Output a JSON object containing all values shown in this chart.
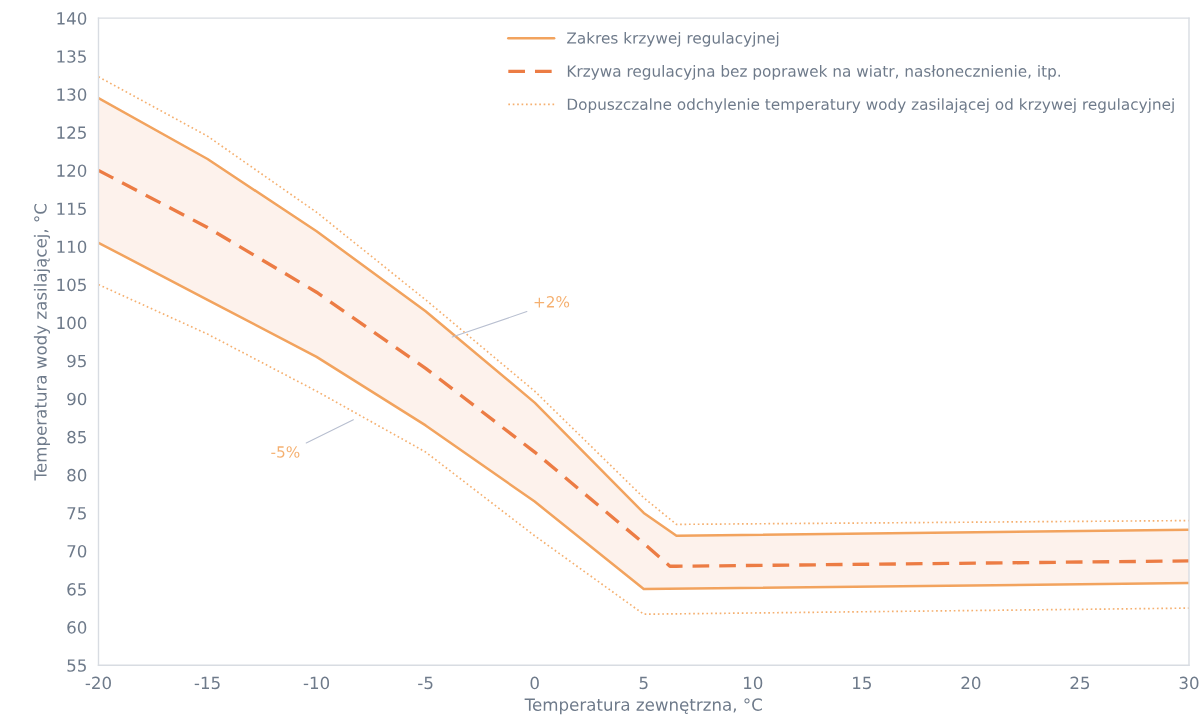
{
  "chart_data": {
    "type": "line",
    "xlabel": "Temperatura zewnętrzna, °C",
    "ylabel": "Temperatura wody zasilającej, °C",
    "xlim": [
      -20,
      30
    ],
    "ylim": [
      55,
      140
    ],
    "xticks": [
      -20,
      -15,
      -10,
      -5,
      0,
      5,
      10,
      15,
      20,
      25,
      30
    ],
    "yticks": [
      55,
      60,
      65,
      70,
      75,
      80,
      85,
      90,
      95,
      100,
      105,
      110,
      115,
      120,
      125,
      130,
      135,
      140
    ],
    "grid": false,
    "legend": "top right",
    "series": [
      {
        "name": "Zakres krzywej regulacyjnej",
        "color": "#f2a35e",
        "line_style": "solid",
        "x": [
          -20,
          -15,
          -10,
          -5,
          0,
          5,
          6.5,
          30
        ],
        "values": [
          129.5,
          121.5,
          112,
          101.5,
          89.5,
          75,
          72,
          72.8
        ]
      },
      {
        "color": "#f2a35e",
        "line_style": "solid",
        "x": [
          -20,
          -15,
          -10,
          -5,
          0,
          5,
          30
        ],
        "values": [
          110.5,
          103,
          95.5,
          86.5,
          76.5,
          65,
          65.8
        ]
      },
      {
        "name": "Krzywa regulacyjna bez poprawek na wiatr, nasłonecznienie, itp.",
        "color": "#ec7c44",
        "line_style": "dashed",
        "x": [
          -20,
          -15,
          -10,
          -5,
          0,
          5,
          6.2,
          6.5,
          30
        ],
        "values": [
          120,
          112.5,
          104,
          94,
          83,
          71,
          68,
          68,
          68.7
        ],
        "lower": [
          110.5,
          103,
          95.5,
          86.5,
          76.5,
          65,
          65,
          65,
          65.8
        ],
        "upper": [
          129.5,
          121.5,
          112,
          101.5,
          89.5,
          75,
          72.6,
          72,
          72.8
        ]
      },
      {
        "name": "Dopuszczalne odchylenie temperatury wody zasilającej od krzywej regulacyjnej",
        "color": "#f5b070",
        "line_style": "dotted",
        "x": [
          -20,
          -15,
          -10,
          -5,
          0,
          5,
          6.5,
          30
        ],
        "values": [
          132.3,
          124.5,
          114.5,
          103,
          91,
          77,
          73.5,
          74
        ]
      },
      {
        "color": "#f5b070",
        "line_style": "dotted",
        "x": [
          -20,
          -15,
          -10,
          -5,
          0,
          5,
          30
        ],
        "values": [
          105,
          98.5,
          91,
          83,
          72,
          61.7,
          62.5
        ]
      }
    ],
    "annotations": [
      {
        "text": "+2%",
        "x": -3.9,
        "y": 98
      },
      {
        "text": "-5%",
        "x": -8.2,
        "y": 87.4
      }
    ]
  }
}
